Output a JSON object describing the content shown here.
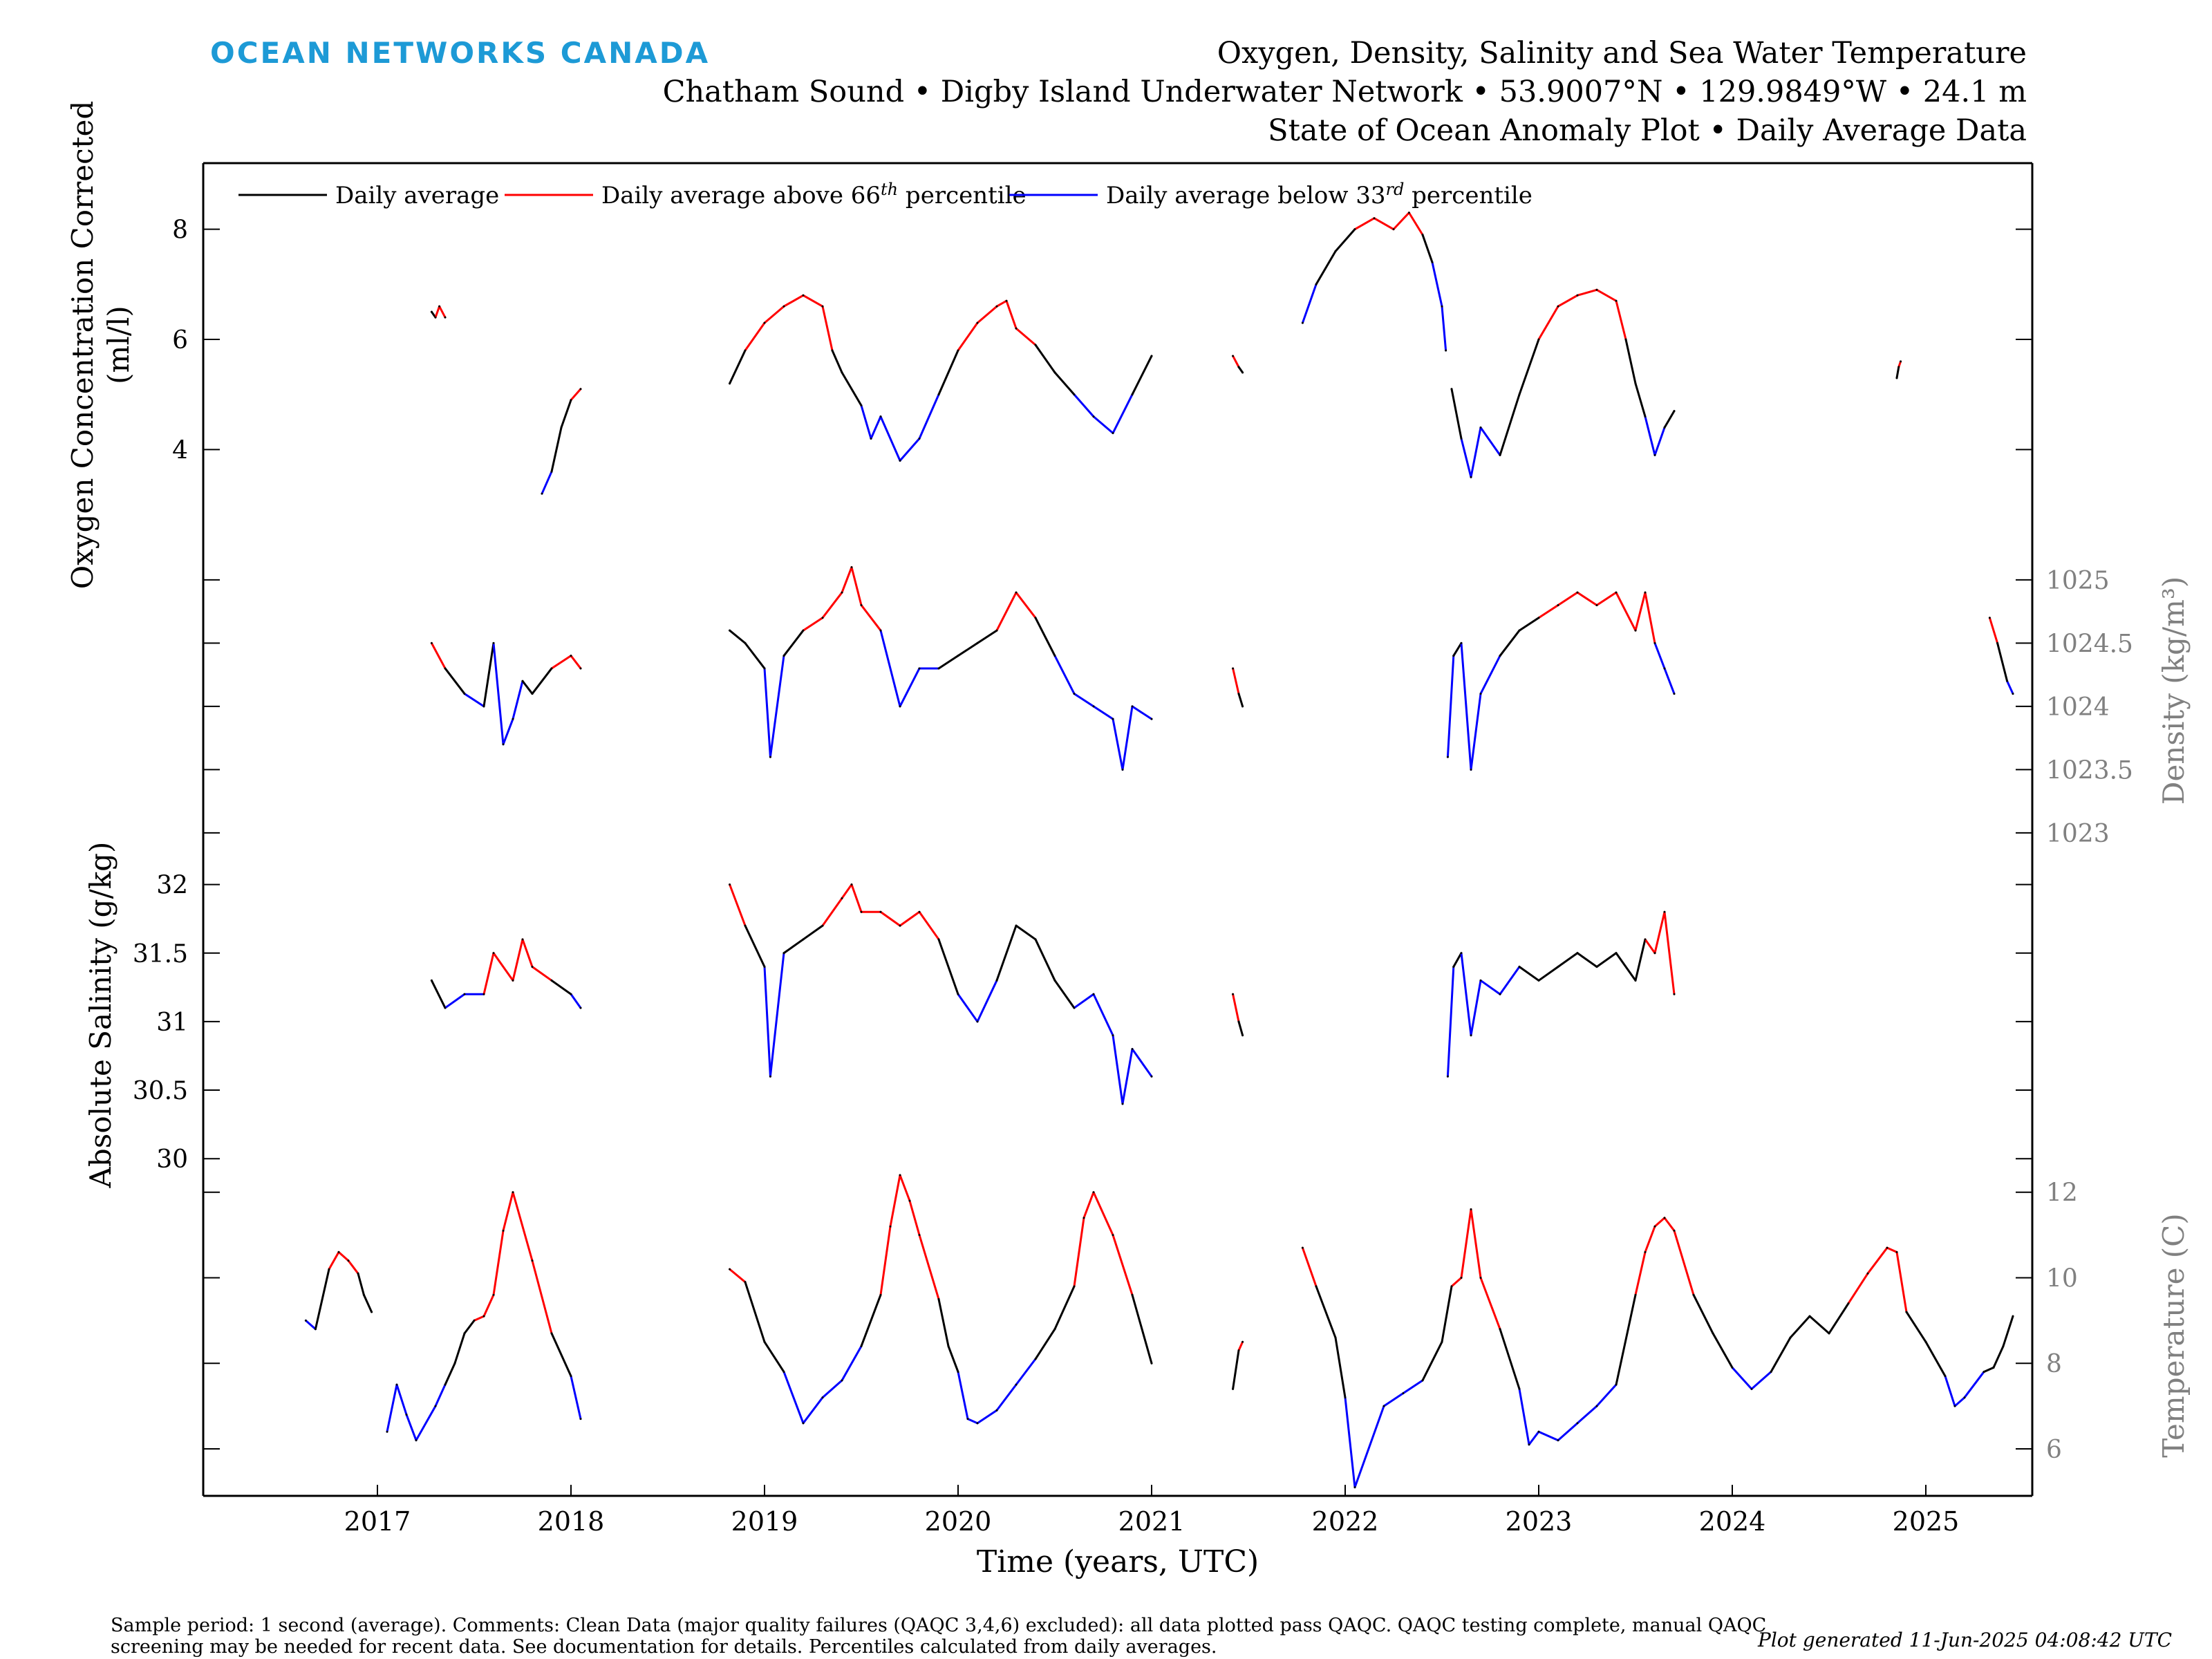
{
  "logo_text": "OCEAN NETWORKS CANADA",
  "title_lines": [
    "Oxygen, Density, Salinity and Sea Water Temperature",
    "Chatham Sound • Digby Island Underwater Network • 53.9007°N • 129.9849°W • 24.1 m",
    "State of Ocean Anomaly Plot • Daily Average Data"
  ],
  "footer_text": "Sample period: 1 second (average). Comments: Clean Data (major quality failures (QAQC 3,4,6) excluded): all data plotted pass QAQC. QAQC testing complete, manual QAQC screening may be needed for recent data. See documentation for details. Percentiles calculated from daily averages.",
  "generated_text": "Plot generated 11-Jun-2025 04:08:42 UTC",
  "colors": {
    "average": "#000000",
    "above": "#ff0000",
    "below": "#0000ff",
    "logo": "#1d9ad6",
    "right_axis": "#808080"
  },
  "chart_data": {
    "type": "line",
    "xlabel": "Time (years, UTC)",
    "xlim": [
      2016.1,
      2025.55
    ],
    "xticks": [
      2017,
      2018,
      2019,
      2020,
      2021,
      2022,
      2023,
      2024,
      2025
    ],
    "xticklabels": [
      "2017",
      "2018",
      "2019",
      "2020",
      "2021",
      "2022",
      "2023",
      "2024",
      "2025"
    ],
    "legend": {
      "placement": "top-left",
      "entries": [
        {
          "key": "avg",
          "text": "Daily average",
          "sup": "",
          "suffix": ""
        },
        {
          "key": "above",
          "text": "Daily average above 66",
          "sup": "th",
          "suffix": " percentile"
        },
        {
          "key": "below",
          "text": "Daily average below 33",
          "sup": "rd",
          "suffix": " percentile"
        }
      ]
    },
    "panels": [
      {
        "name": "oxygen",
        "ylabel_lines": [
          "Oxygen Concentration Corrected",
          "(ml/l)"
        ],
        "ylabel_side": "left",
        "ylim": [
          2.6,
          9.2
        ],
        "yticks": [
          4,
          6,
          8
        ],
        "yticklabels": [
          "4",
          "6",
          "8"
        ],
        "segments": [
          {
            "x": [
              2017.28,
              2017.3,
              2017.32,
              2017.35
            ],
            "y": [
              6.5,
              6.4,
              6.6,
              6.4
            ]
          },
          {
            "x": [
              2017.85,
              2017.9,
              2017.95,
              2018.0,
              2018.05
            ],
            "y": [
              3.2,
              3.6,
              4.4,
              4.9,
              5.1
            ]
          },
          {
            "x": [
              2018.82,
              2018.9,
              2019.0,
              2019.1,
              2019.2,
              2019.3,
              2019.35,
              2019.4,
              2019.5,
              2019.55,
              2019.6,
              2019.7,
              2019.8,
              2019.9,
              2020.0,
              2020.1,
              2020.2,
              2020.25,
              2020.3,
              2020.4,
              2020.5,
              2020.6,
              2020.7,
              2020.8,
              2020.9,
              2021.0
            ],
            "y": [
              5.2,
              5.8,
              6.3,
              6.6,
              6.8,
              6.6,
              5.8,
              5.4,
              4.8,
              4.2,
              4.6,
              3.8,
              4.2,
              5.0,
              5.8,
              6.3,
              6.6,
              6.7,
              6.2,
              5.9,
              5.4,
              5.0,
              4.6,
              4.3,
              5.0,
              5.7
            ]
          },
          {
            "x": [
              2021.42,
              2021.45,
              2021.47
            ],
            "y": [
              5.7,
              5.5,
              5.4
            ]
          },
          {
            "x": [
              2021.78,
              2021.85,
              2021.95,
              2022.05,
              2022.15,
              2022.25,
              2022.33,
              2022.4,
              2022.45,
              2022.5,
              2022.52
            ],
            "y": [
              6.3,
              7.0,
              7.6,
              8.0,
              8.2,
              8.0,
              8.3,
              7.9,
              7.4,
              6.6,
              5.8
            ]
          },
          {
            "x": [
              2022.55,
              2022.6,
              2022.65,
              2022.7,
              2022.8,
              2022.9,
              2023.0,
              2023.1,
              2023.2,
              2023.3,
              2023.4,
              2023.45,
              2023.5,
              2023.55,
              2023.6,
              2023.65,
              2023.7
            ],
            "y": [
              5.1,
              4.2,
              3.5,
              4.4,
              3.9,
              5.0,
              6.0,
              6.6,
              6.8,
              6.9,
              6.7,
              6.0,
              5.2,
              4.6,
              3.9,
              4.4,
              4.7
            ]
          },
          {
            "x": [
              2024.85,
              2024.86,
              2024.87
            ],
            "y": [
              5.3,
              5.5,
              5.6
            ]
          }
        ]
      },
      {
        "name": "density",
        "ylabel_lines": [
          "Density (kg/m³)"
        ],
        "ylabel_side": "right",
        "ylim": [
          1022.83,
          1025.42
        ],
        "yticks": [
          1023,
          1023.5,
          1024,
          1024.5,
          1025
        ],
        "yticklabels": [
          "1023",
          "1023.5",
          "1024",
          "1024.5",
          "1025"
        ],
        "segments": [
          {
            "x": [
              2017.28,
              2017.35,
              2017.45,
              2017.55,
              2017.6,
              2017.65,
              2017.7,
              2017.75,
              2017.8,
              2017.9,
              2018.0,
              2018.05
            ],
            "y": [
              1024.5,
              1024.3,
              1024.1,
              1024.0,
              1024.5,
              1023.7,
              1023.9,
              1024.2,
              1024.1,
              1024.3,
              1024.4,
              1024.3
            ]
          },
          {
            "x": [
              2018.82,
              2018.9,
              2019.0,
              2019.03,
              2019.1,
              2019.2,
              2019.3,
              2019.4,
              2019.45,
              2019.5,
              2019.6,
              2019.7,
              2019.8,
              2019.9,
              2020.0,
              2020.1,
              2020.2,
              2020.3,
              2020.4,
              2020.5,
              2020.6,
              2020.7,
              2020.8,
              2020.85,
              2020.9,
              2021.0
            ],
            "y": [
              1024.6,
              1024.5,
              1024.3,
              1023.6,
              1024.4,
              1024.6,
              1024.7,
              1024.9,
              1025.1,
              1024.8,
              1024.6,
              1024.0,
              1024.3,
              1024.3,
              1024.4,
              1024.5,
              1024.6,
              1024.9,
              1024.7,
              1024.4,
              1024.1,
              1024.0,
              1023.9,
              1023.5,
              1024.0,
              1023.9
            ]
          },
          {
            "x": [
              2021.42,
              2021.45,
              2021.47
            ],
            "y": [
              1024.3,
              1024.1,
              1024.0
            ]
          },
          {
            "x": [
              2022.53,
              2022.56,
              2022.6,
              2022.65,
              2022.7,
              2022.8,
              2022.9,
              2023.0,
              2023.1,
              2023.2,
              2023.3,
              2023.4,
              2023.5,
              2023.55,
              2023.6,
              2023.65,
              2023.7
            ],
            "y": [
              1023.6,
              1024.4,
              1024.5,
              1023.5,
              1024.1,
              1024.4,
              1024.6,
              1024.7,
              1024.8,
              1024.9,
              1024.8,
              1024.9,
              1024.6,
              1024.9,
              1024.5,
              1024.3,
              1024.1
            ]
          },
          {
            "x": [
              2025.33,
              2025.37,
              2025.42,
              2025.45
            ],
            "y": [
              1024.7,
              1024.5,
              1024.2,
              1024.1
            ]
          }
        ]
      },
      {
        "name": "salinity",
        "ylabel_lines": [
          "Absolute Salinity (g/kg)"
        ],
        "ylabel_side": "left",
        "ylim": [
          29.88,
          32.22
        ],
        "yticks": [
          30,
          30.5,
          31,
          31.5,
          32
        ],
        "yticklabels": [
          "30",
          "30.5",
          "31",
          "31.5",
          "32"
        ],
        "segments": [
          {
            "x": [
              2017.28,
              2017.35,
              2017.45,
              2017.55,
              2017.6,
              2017.7,
              2017.75,
              2017.8,
              2017.9,
              2018.0,
              2018.05
            ],
            "y": [
              31.3,
              31.1,
              31.2,
              31.2,
              31.5,
              31.3,
              31.6,
              31.4,
              31.3,
              31.2,
              31.1
            ]
          },
          {
            "x": [
              2018.82,
              2018.9,
              2019.0,
              2019.03,
              2019.1,
              2019.2,
              2019.3,
              2019.4,
              2019.45,
              2019.5,
              2019.6,
              2019.7,
              2019.8,
              2019.9,
              2020.0,
              2020.1,
              2020.2,
              2020.3,
              2020.4,
              2020.5,
              2020.6,
              2020.7,
              2020.8,
              2020.85,
              2020.9,
              2021.0
            ],
            "y": [
              32.0,
              31.7,
              31.4,
              30.6,
              31.5,
              31.6,
              31.7,
              31.9,
              32.0,
              31.8,
              31.8,
              31.7,
              31.8,
              31.6,
              31.2,
              31.0,
              31.3,
              31.7,
              31.6,
              31.3,
              31.1,
              31.2,
              30.9,
              30.4,
              30.8,
              30.6
            ]
          },
          {
            "x": [
              2021.42,
              2021.45,
              2021.47
            ],
            "y": [
              31.2,
              31.0,
              30.9
            ]
          },
          {
            "x": [
              2022.53,
              2022.56,
              2022.6,
              2022.65,
              2022.7,
              2022.8,
              2022.9,
              2023.0,
              2023.1,
              2023.2,
              2023.3,
              2023.4,
              2023.5,
              2023.55,
              2023.6,
              2023.65,
              2023.7
            ],
            "y": [
              30.6,
              31.4,
              31.5,
              30.9,
              31.3,
              31.2,
              31.4,
              31.3,
              31.4,
              31.5,
              31.4,
              31.5,
              31.3,
              31.6,
              31.5,
              31.8,
              31.2
            ]
          }
        ]
      },
      {
        "name": "temperature",
        "ylabel_lines": [
          "Temperature (C)"
        ],
        "ylabel_side": "right",
        "ylim": [
          4.9,
          12.4
        ],
        "yticks": [
          6,
          8,
          10,
          12
        ],
        "yticklabels": [
          "6",
          "8",
          "10",
          "12"
        ],
        "segments": [
          {
            "x": [
              2016.63,
              2016.68,
              2016.75,
              2016.8,
              2016.85,
              2016.9,
              2016.93,
              2016.97
            ],
            "y": [
              9.0,
              8.8,
              10.2,
              10.6,
              10.4,
              10.1,
              9.6,
              9.2
            ]
          },
          {
            "x": [
              2017.05,
              2017.1,
              2017.15,
              2017.2,
              2017.3,
              2017.35,
              2017.4,
              2017.45,
              2017.5,
              2017.55,
              2017.6,
              2017.65,
              2017.7,
              2017.8,
              2017.9,
              2018.0,
              2018.05
            ],
            "y": [
              6.4,
              7.5,
              6.8,
              6.2,
              7.0,
              7.5,
              8.0,
              8.7,
              9.0,
              9.1,
              9.6,
              11.1,
              12.0,
              10.4,
              8.7,
              7.7,
              6.7
            ]
          },
          {
            "x": [
              2018.82,
              2018.9,
              2019.0,
              2019.1,
              2019.2,
              2019.3,
              2019.4,
              2019.5,
              2019.6,
              2019.65,
              2019.7,
              2019.75,
              2019.8,
              2019.9,
              2019.95,
              2020.0,
              2020.05,
              2020.1,
              2020.2,
              2020.3,
              2020.4,
              2020.5,
              2020.6,
              2020.65,
              2020.7,
              2020.8,
              2020.9,
              2021.0
            ],
            "y": [
              10.2,
              9.9,
              8.5,
              7.8,
              6.6,
              7.2,
              7.6,
              8.4,
              9.6,
              11.2,
              12.4,
              11.8,
              11.0,
              9.5,
              8.4,
              7.8,
              6.7,
              6.6,
              6.9,
              7.5,
              8.1,
              8.8,
              9.8,
              11.4,
              12.0,
              11.0,
              9.6,
              8.0
            ]
          },
          {
            "x": [
              2021.42,
              2021.45,
              2021.47
            ],
            "y": [
              7.4,
              8.3,
              8.5
            ]
          },
          {
            "x": [
              2021.78,
              2021.85,
              2021.95,
              2022.0,
              2022.05,
              2022.2,
              2022.3,
              2022.4,
              2022.5,
              2022.55,
              2022.6,
              2022.65,
              2022.7,
              2022.8,
              2022.9,
              2022.95,
              2023.0,
              2023.1,
              2023.2,
              2023.3,
              2023.4,
              2023.5,
              2023.55,
              2023.6,
              2023.65,
              2023.7,
              2023.8,
              2023.9,
              2024.0,
              2024.1,
              2024.2,
              2024.3,
              2024.4,
              2024.5,
              2024.6,
              2024.7,
              2024.8,
              2024.85,
              2024.9,
              2025.0,
              2025.1,
              2025.15,
              2025.2,
              2025.3,
              2025.35,
              2025.4,
              2025.45
            ],
            "y": [
              10.7,
              9.8,
              8.6,
              7.2,
              5.1,
              7.0,
              7.3,
              7.6,
              8.5,
              9.8,
              10.0,
              11.6,
              10.0,
              8.8,
              7.4,
              6.1,
              6.4,
              6.2,
              6.6,
              7.0,
              7.5,
              9.6,
              10.6,
              11.2,
              11.4,
              11.1,
              9.6,
              8.7,
              7.9,
              7.4,
              7.8,
              8.6,
              9.1,
              8.7,
              9.4,
              10.1,
              10.7,
              10.6,
              9.2,
              8.5,
              7.7,
              7.0,
              7.2,
              7.8,
              7.9,
              8.4,
              9.1
            ]
          }
        ]
      }
    ]
  }
}
